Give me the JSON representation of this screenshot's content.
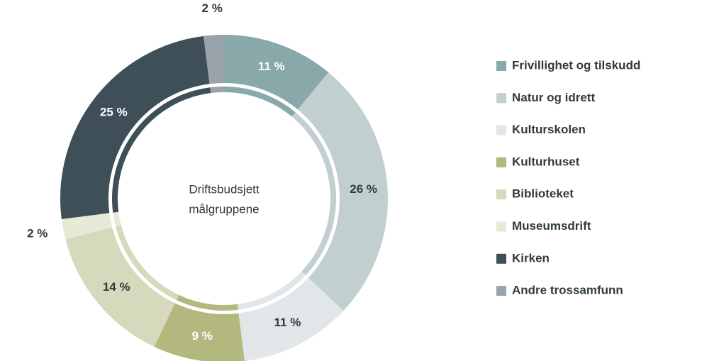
{
  "chart_data": {
    "type": "pie",
    "center_text": [
      "Driftsbudsjett",
      "målgruppene"
    ],
    "categories": [
      "Frivillighet og tilskudd",
      "Natur og idrett",
      "Kulturskolen",
      "Kulturhuset",
      "Biblioteket",
      "Museumsdrift",
      "Kirken",
      "Andre trossamfunn"
    ],
    "values": [
      11,
      26,
      11,
      9,
      14,
      2,
      25,
      2
    ],
    "value_labels": [
      "11 %",
      "26 %",
      "11 %",
      "9 %",
      "14 %",
      "2 %",
      "25 %",
      "2 %"
    ],
    "colors": [
      "#88a8aa",
      "#c2cfd1",
      "#e1e6e8",
      "#b3b87e",
      "#d7d9bc",
      "#e8ead8",
      "#3e4f57",
      "#99a3ac"
    ],
    "legend": "right"
  }
}
